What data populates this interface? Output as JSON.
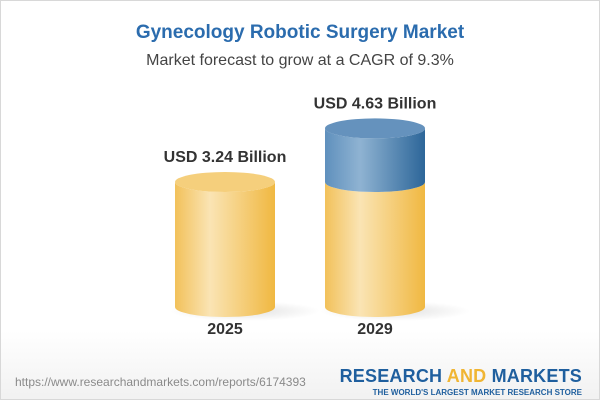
{
  "chart_data": {
    "type": "bar",
    "title": "Gynecology Robotic Surgery Market",
    "subtitle": "Market forecast to grow at a CAGR of 9.3%",
    "categories": [
      "2025",
      "2029"
    ],
    "values": [
      3.24,
      4.63
    ],
    "data_labels": [
      "USD 3.24 Billion",
      "USD 4.63 Billion"
    ],
    "unit": "USD Billion",
    "style": "3d-cylinder",
    "colors": {
      "base": "#f3c35e",
      "growth": "#5588b8",
      "title": "#2b6cae"
    }
  },
  "footer": {
    "url": "https://www.researchandmarkets.com/reports/6174393",
    "logo_part1": "RESEARCH",
    "logo_part2": "AND",
    "logo_part3": "MARKETS",
    "logo_tagline": "THE WORLD'S LARGEST MARKET RESEARCH STORE"
  }
}
